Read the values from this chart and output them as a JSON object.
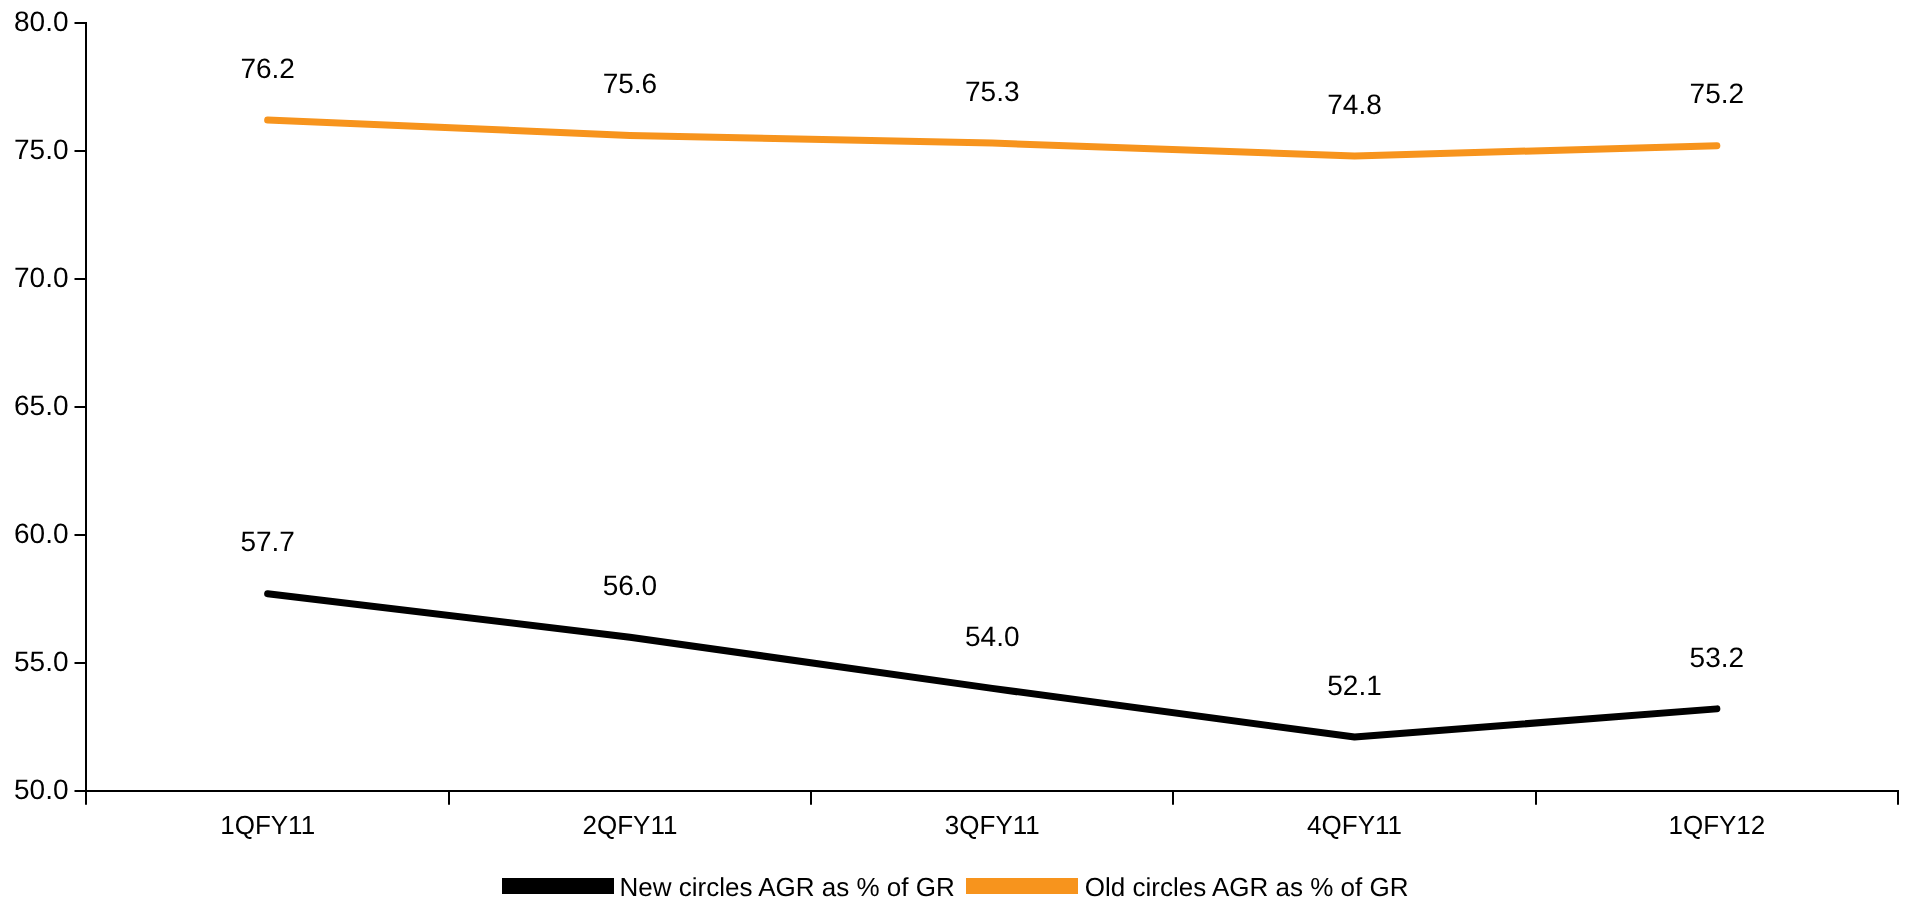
{
  "chart_data": {
    "type": "line",
    "categories": [
      "1QFY11",
      "2QFY11",
      "3QFY11",
      "4QFY11",
      "1QFY12"
    ],
    "series": [
      {
        "name": "New circles AGR as % of GR",
        "color": "#000000",
        "values": [
          57.7,
          56.0,
          54.0,
          52.1,
          53.2
        ],
        "value_labels": [
          "57.7",
          "56.0",
          "54.0",
          "52.1",
          "53.2"
        ]
      },
      {
        "name": "Old circles AGR as % of GR",
        "color": "#f7941d",
        "values": [
          76.2,
          75.6,
          75.3,
          74.8,
          75.2
        ],
        "value_labels": [
          "76.2",
          "75.6",
          "75.3",
          "74.8",
          "75.2"
        ]
      }
    ],
    "ylim": [
      50,
      80
    ],
    "yticks": [
      {
        "value": 50,
        "label": "50.0"
      },
      {
        "value": 55,
        "label": "55.0"
      },
      {
        "value": 60,
        "label": "60.0"
      },
      {
        "value": 65,
        "label": "65.0"
      },
      {
        "value": 70,
        "label": "70.0"
      },
      {
        "value": 75,
        "label": "75.0"
      },
      {
        "value": 80,
        "label": "80.0"
      }
    ],
    "grid": false,
    "legend": "bottom",
    "marker": "none",
    "line_style": "solid"
  }
}
